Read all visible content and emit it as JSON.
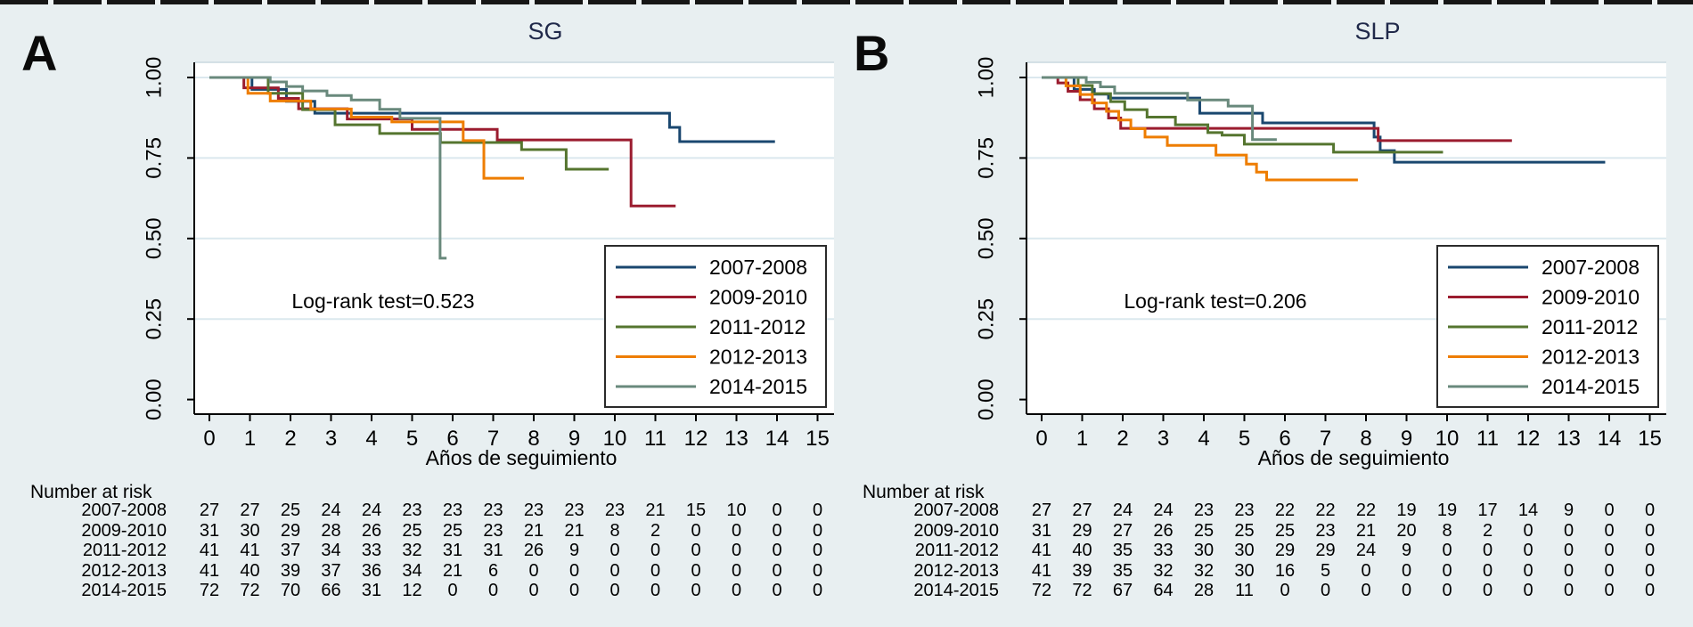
{
  "background": "#e8eff1",
  "top_strip": {
    "color": "#161616",
    "dash_color": "#eef3f4"
  },
  "chart_data": [
    {
      "type": "line",
      "subtype": "kaplan-meier-step",
      "panel_label": "A",
      "title": "SG",
      "annotation": "Log-rank test=0.523",
      "xlabel": "Años de seguimiento",
      "ylabel": "",
      "xlim": [
        0,
        15
      ],
      "ylim": [
        0.0,
        1.0
      ],
      "grid": true,
      "legend_position": "lower-right",
      "x_ticks": [
        "0",
        "1",
        "2",
        "3",
        "4",
        "5",
        "6",
        "7",
        "8",
        "9",
        "10",
        "11",
        "12",
        "13",
        "14",
        "15"
      ],
      "y_ticks": [
        "0.00",
        "0.25",
        "0.50",
        "0.75",
        "1.00"
      ],
      "series": [
        {
          "name": "2007-2008",
          "color": "#1a476f",
          "points": [
            [
              0,
              1
            ],
            [
              1.05,
              0.963
            ],
            [
              1.9,
              0.926
            ],
            [
              2.6,
              0.889
            ],
            [
              11.35,
              0.845
            ],
            [
              11.6,
              0.801
            ],
            [
              13.95,
              0.801
            ]
          ]
        },
        {
          "name": "2009-2010",
          "color": "#9b1c2f",
          "points": [
            [
              0,
              1
            ],
            [
              0.85,
              0.968
            ],
            [
              1.7,
              0.935
            ],
            [
              2.2,
              0.903
            ],
            [
              3.4,
              0.871
            ],
            [
              5.0,
              0.839
            ],
            [
              7.1,
              0.806
            ],
            [
              10.4,
              0.601
            ],
            [
              11.5,
              0.601
            ]
          ]
        },
        {
          "name": "2011-2012",
          "color": "#55752f",
          "points": [
            [
              0,
              1
            ],
            [
              1.45,
              0.951
            ],
            [
              2.3,
              0.9
            ],
            [
              3.1,
              0.853
            ],
            [
              4.2,
              0.826
            ],
            [
              5.7,
              0.798
            ],
            [
              7.7,
              0.776
            ],
            [
              8.8,
              0.715
            ],
            [
              9.85,
              0.715
            ]
          ]
        },
        {
          "name": "2012-2013",
          "color": "#ee7d00",
          "points": [
            [
              0,
              1
            ],
            [
              0.95,
              0.951
            ],
            [
              1.5,
              0.927
            ],
            [
              2.5,
              0.902
            ],
            [
              3.5,
              0.877
            ],
            [
              4.5,
              0.862
            ],
            [
              6.26,
              0.804
            ],
            [
              6.77,
              0.687
            ],
            [
              7.76,
              0.687
            ]
          ]
        },
        {
          "name": "2014-2015",
          "color": "#69897c",
          "points": [
            [
              0,
              1
            ],
            [
              1.5,
              0.986
            ],
            [
              1.9,
              0.972
            ],
            [
              2.3,
              0.958
            ],
            [
              2.9,
              0.944
            ],
            [
              3.5,
              0.93
            ],
            [
              4.2,
              0.901
            ],
            [
              4.7,
              0.873
            ],
            [
              5.69,
              0.439
            ],
            [
              5.85,
              0.439
            ]
          ]
        }
      ],
      "number_at_risk": {
        "title": "Number at risk",
        "time_points": [
          0,
          1,
          2,
          3,
          4,
          5,
          6,
          7,
          8,
          9,
          10,
          11,
          12,
          13,
          14,
          15
        ],
        "rows": [
          {
            "label": "2007-2008",
            "values": [
              27,
              27,
              25,
              24,
              24,
              23,
              23,
              23,
              23,
              23,
              23,
              21,
              15,
              10,
              0,
              0
            ]
          },
          {
            "label": "2009-2010",
            "values": [
              31,
              30,
              29,
              28,
              26,
              25,
              25,
              23,
              21,
              21,
              8,
              2,
              0,
              0,
              0,
              0
            ]
          },
          {
            "label": "2011-2012",
            "values": [
              41,
              41,
              37,
              34,
              33,
              32,
              31,
              31,
              26,
              9,
              0,
              0,
              0,
              0,
              0,
              0
            ]
          },
          {
            "label": "2012-2013",
            "values": [
              41,
              40,
              39,
              37,
              36,
              34,
              21,
              6,
              0,
              0,
              0,
              0,
              0,
              0,
              0,
              0
            ]
          },
          {
            "label": "2014-2015",
            "values": [
              72,
              72,
              70,
              66,
              31,
              12,
              0,
              0,
              0,
              0,
              0,
              0,
              0,
              0,
              0,
              0
            ]
          }
        ]
      }
    },
    {
      "type": "line",
      "subtype": "kaplan-meier-step",
      "panel_label": "B",
      "title": "SLP",
      "annotation": "Log-rank test=0.206",
      "xlabel": "Años de seguimiento",
      "ylabel": "",
      "xlim": [
        0,
        15
      ],
      "ylim": [
        0.0,
        1.0
      ],
      "grid": true,
      "legend_position": "lower-right",
      "x_ticks": [
        "0",
        "1",
        "2",
        "3",
        "4",
        "5",
        "6",
        "7",
        "8",
        "9",
        "10",
        "11",
        "12",
        "13",
        "14",
        "15"
      ],
      "y_ticks": [
        "0.00",
        "0.25",
        "0.50",
        "0.75",
        "1.00"
      ],
      "series": [
        {
          "name": "2007-2008",
          "color": "#1a476f",
          "points": [
            [
              0,
              1
            ],
            [
              0.8,
              0.963
            ],
            [
              1.3,
              0.948
            ],
            [
              1.65,
              0.936
            ],
            [
              3.9,
              0.889
            ],
            [
              5.45,
              0.859
            ],
            [
              8.2,
              0.815
            ],
            [
              8.35,
              0.773
            ],
            [
              8.7,
              0.737
            ],
            [
              13.9,
              0.737
            ]
          ]
        },
        {
          "name": "2009-2010",
          "color": "#9b1c2f",
          "points": [
            [
              0,
              1
            ],
            [
              0.4,
              0.983
            ],
            [
              0.65,
              0.957
            ],
            [
              0.95,
              0.931
            ],
            [
              1.3,
              0.903
            ],
            [
              1.65,
              0.874
            ],
            [
              1.95,
              0.842
            ],
            [
              8.3,
              0.804
            ],
            [
              11.6,
              0.804
            ]
          ]
        },
        {
          "name": "2011-2012",
          "color": "#55752f",
          "points": [
            [
              0,
              1
            ],
            [
              0.9,
              0.975
            ],
            [
              1.25,
              0.95
            ],
            [
              1.7,
              0.925
            ],
            [
              2.05,
              0.9
            ],
            [
              2.6,
              0.877
            ],
            [
              3.3,
              0.853
            ],
            [
              4.1,
              0.829
            ],
            [
              4.45,
              0.821
            ],
            [
              5.0,
              0.793
            ],
            [
              7.2,
              0.768
            ],
            [
              9.9,
              0.768
            ]
          ]
        },
        {
          "name": "2012-2013",
          "color": "#ee7d00",
          "points": [
            [
              0,
              1
            ],
            [
              0.6,
              0.974
            ],
            [
              0.95,
              0.947
            ],
            [
              1.25,
              0.921
            ],
            [
              1.6,
              0.895
            ],
            [
              1.9,
              0.868
            ],
            [
              2.2,
              0.841
            ],
            [
              2.55,
              0.815
            ],
            [
              3.1,
              0.789
            ],
            [
              4.3,
              0.759
            ],
            [
              5.05,
              0.731
            ],
            [
              5.3,
              0.706
            ],
            [
              5.55,
              0.682
            ],
            [
              7.8,
              0.682
            ]
          ]
        },
        {
          "name": "2014-2015",
          "color": "#69897c",
          "points": [
            [
              0,
              1
            ],
            [
              1.1,
              0.985
            ],
            [
              1.45,
              0.971
            ],
            [
              1.8,
              0.951
            ],
            [
              3.6,
              0.93
            ],
            [
              4.6,
              0.911
            ],
            [
              5.2,
              0.807
            ],
            [
              5.8,
              0.807
            ]
          ]
        }
      ],
      "number_at_risk": {
        "title": "Number at risk",
        "time_points": [
          0,
          1,
          2,
          3,
          4,
          5,
          6,
          7,
          8,
          9,
          10,
          11,
          12,
          13,
          14,
          15
        ],
        "rows": [
          {
            "label": "2007-2008",
            "values": [
              27,
              27,
              24,
              24,
              23,
              23,
              22,
              22,
              22,
              19,
              19,
              17,
              14,
              9,
              0,
              0
            ]
          },
          {
            "label": "2009-2010",
            "values": [
              31,
              29,
              27,
              26,
              25,
              25,
              25,
              23,
              21,
              20,
              8,
              2,
              0,
              0,
              0,
              0
            ]
          },
          {
            "label": "2011-2012",
            "values": [
              41,
              40,
              35,
              33,
              30,
              30,
              29,
              29,
              24,
              9,
              0,
              0,
              0,
              0,
              0,
              0
            ]
          },
          {
            "label": "2012-2013",
            "values": [
              41,
              39,
              35,
              32,
              32,
              30,
              16,
              5,
              0,
              0,
              0,
              0,
              0,
              0,
              0,
              0
            ]
          },
          {
            "label": "2014-2015",
            "values": [
              72,
              72,
              67,
              64,
              28,
              11,
              0,
              0,
              0,
              0,
              0,
              0,
              0,
              0,
              0,
              0
            ]
          }
        ]
      }
    }
  ]
}
